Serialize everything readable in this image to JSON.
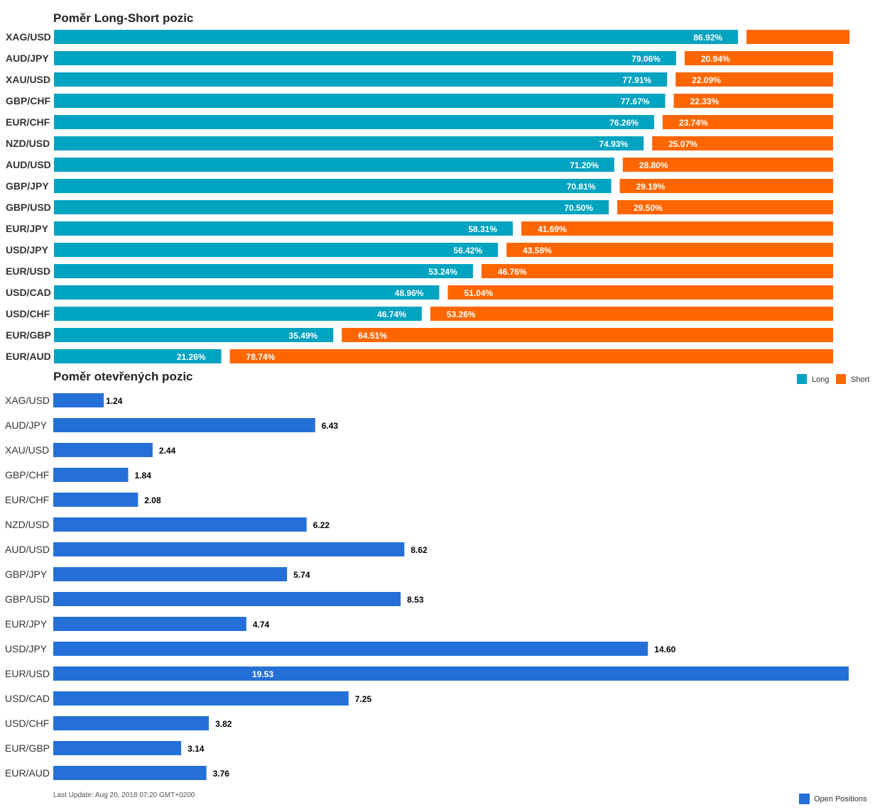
{
  "chart_data": [
    {
      "type": "bar",
      "stacked": true,
      "orientation": "horizontal",
      "title": "Poměr Long-Short pozic",
      "categories": [
        "XAG/USD",
        "AUD/JPY",
        "XAU/USD",
        "GBP/CHF",
        "EUR/CHF",
        "NZD/USD",
        "AUD/USD",
        "GBP/JPY",
        "GBP/USD",
        "EUR/JPY",
        "USD/JPY",
        "EUR/USD",
        "USD/CAD",
        "USD/CHF",
        "EUR/GBP",
        "EUR/AUD"
      ],
      "series": [
        {
          "name": "Long",
          "color": "#00a3c0",
          "values": [
            86.92,
            79.06,
            77.91,
            77.67,
            76.26,
            74.93,
            71.2,
            70.81,
            70.5,
            58.31,
            56.42,
            53.24,
            48.96,
            46.74,
            35.49,
            21.26
          ],
          "labels": [
            "86.92%",
            "79.06%",
            "77.91%",
            "77.67%",
            "76.26%",
            "74.93%",
            "71.20%",
            "70.81%",
            "70.50%",
            "58.31%",
            "56.42%",
            "53.24%",
            "48.96%",
            "46.74%",
            "35.49%",
            "21.26%"
          ]
        },
        {
          "name": "Short",
          "color": "#ff6600",
          "values": [
            13.08,
            20.94,
            22.09,
            22.33,
            23.74,
            25.07,
            28.8,
            29.19,
            29.5,
            41.69,
            43.58,
            46.76,
            51.04,
            53.26,
            64.51,
            78.74
          ],
          "labels": [
            "",
            "20.94%",
            "22.09%",
            "22.33%",
            "23.74%",
            "25.07%",
            "28.80%",
            "29.19%",
            "29.50%",
            "41.69%",
            "43.58%",
            "46.76%",
            "51.04%",
            "53.26%",
            "64.51%",
            "78.74%"
          ]
        }
      ],
      "xlim": [
        0,
        100
      ],
      "legend": "bottom-right",
      "grid": false
    },
    {
      "type": "bar",
      "orientation": "horizontal",
      "title": "Poměr otevřených pozic",
      "categories": [
        "XAG/USD",
        "AUD/JPY",
        "XAU/USD",
        "GBP/CHF",
        "EUR/CHF",
        "NZD/USD",
        "AUD/USD",
        "GBP/JPY",
        "GBP/USD",
        "EUR/JPY",
        "USD/JPY",
        "EUR/USD",
        "USD/CAD",
        "USD/CHF",
        "EUR/GBP",
        "EUR/AUD"
      ],
      "series": [
        {
          "name": "Open Positions",
          "color": "#2570d8",
          "values": [
            1.24,
            6.43,
            2.44,
            1.84,
            2.08,
            6.22,
            8.62,
            5.74,
            8.53,
            4.74,
            14.6,
            19.53,
            7.25,
            3.82,
            3.14,
            3.76
          ],
          "labels": [
            "1.24",
            "6.43",
            "2.44",
            "1.84",
            "2.08",
            "6.22",
            "8.62",
            "5.74",
            "8.53",
            "4.74",
            "14.60",
            "19.53",
            "7.25",
            "3.82",
            "3.14",
            "3.76"
          ]
        }
      ],
      "xlim": [
        0,
        19.53
      ],
      "legend": "bottom-right",
      "grid": false
    }
  ],
  "footer": {
    "last_update": "Last Update: Aug 20, 2018 07:20 GMT+0200"
  }
}
